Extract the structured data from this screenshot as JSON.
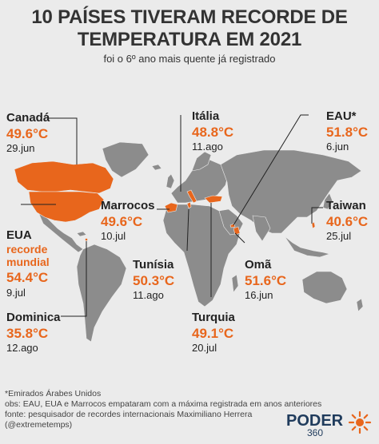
{
  "header": {
    "title_line1": "10 PAÍSES TIVERAM RECORDE DE",
    "title_line2": "TEMPERATURA EM 2021",
    "subtitle": "foi o 6º ano mais quente já registrado"
  },
  "countries": {
    "canada": {
      "name": "Canadá",
      "temp": "49.6°C",
      "date": "29.jun"
    },
    "italia": {
      "name": "Itália",
      "temp": "48.8°C",
      "date": "11.ago"
    },
    "eau": {
      "name": "EAU*",
      "temp": "51.8°C",
      "date": "6.jun"
    },
    "marrocos": {
      "name": "Marrocos",
      "temp": "49.6°C",
      "date": "10.jul"
    },
    "taiwan": {
      "name": "Taiwan",
      "temp": "40.6°C",
      "date": "25.jul"
    },
    "eua": {
      "name": "EUA",
      "record_line1": "recorde",
      "record_line2": "mundial",
      "temp": "54.4°C",
      "date": "9.jul"
    },
    "tunisia": {
      "name": "Tunísia",
      "temp": "50.3°C",
      "date": "11.ago"
    },
    "oma": {
      "name": "Omã",
      "temp": "51.6°C",
      "date": "16.jun"
    },
    "dominica": {
      "name": "Dominica",
      "temp": "35.8°C",
      "date": "12.ago"
    },
    "turquia": {
      "name": "Turquia",
      "temp": "49.1°C",
      "date": "20.jul"
    }
  },
  "footer": {
    "line1": "*Emirados Árabes Unidos",
    "line2": "obs: EAU, EUA e Marrocos empataram com a máxima registrada em anos anteriores",
    "line3": "fonte: pesquisador de recordes internacionais Maximiliano Herrera",
    "line4": "(@extremetemps)"
  },
  "logo": {
    "text": "PODER",
    "number": "360"
  },
  "colors": {
    "accent": "#e8661c",
    "land": "#8c8c8c",
    "background": "#ebebeb"
  }
}
